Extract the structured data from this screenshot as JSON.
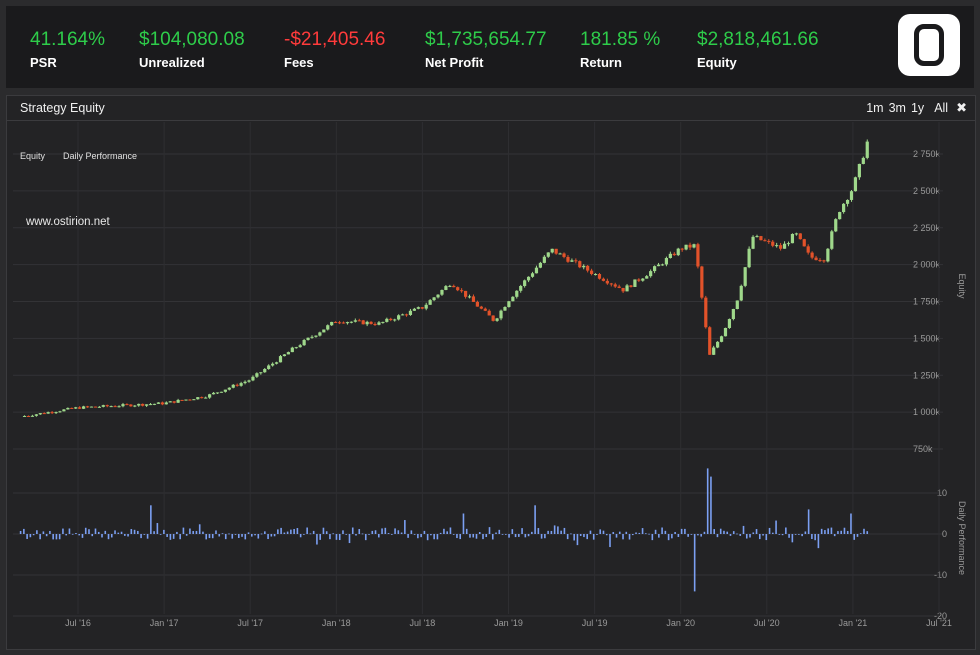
{
  "stats": [
    {
      "value": "41.164%",
      "label": "PSR",
      "tone": "pos"
    },
    {
      "value": "$104,080.08",
      "label": "Unrealized",
      "tone": "pos"
    },
    {
      "value": "-$21,405.46",
      "label": "Fees",
      "tone": "neg"
    },
    {
      "value": "$1,735,654.77",
      "label": "Net Profit",
      "tone": "pos"
    },
    {
      "value": "181.85 %",
      "label": "Return",
      "tone": "pos"
    },
    {
      "value": "$2,818,461.66",
      "label": "Equity",
      "tone": "pos"
    }
  ],
  "logo_icon": "logo-o-icon",
  "panel": {
    "title": "Strategy Equity",
    "ranges": [
      "1m",
      "3m",
      "1y"
    ],
    "range_all": "All",
    "close_icon": "close-icon"
  },
  "colors": {
    "up": "#9fd88b",
    "down": "#e2522a",
    "bar": "#7b9ff2",
    "positive": "#2ecc4a",
    "negative": "#ff3b3b"
  },
  "chart_data": {
    "type": "candlestick",
    "legend": [
      "Equity",
      "Daily Performance"
    ],
    "legend_placement": "top-left",
    "watermark": "www.ostirion.net",
    "x_ticks": [
      "Jul '16",
      "Jan '17",
      "Jul '17",
      "Jan '18",
      "Jul '18",
      "Jan '19",
      "Jul '19",
      "Jan '20",
      "Jul '20",
      "Jan '21",
      "Jul '21"
    ],
    "grid": true,
    "equity": {
      "ylabel": "Equity",
      "y_ticks": [
        "750k",
        "1 000k",
        "1 250k",
        "1 500k",
        "1 750k",
        "2 000k",
        "2 250k",
        "2 500k",
        "2 750k"
      ],
      "ylim": [
        750000,
        2900000
      ],
      "approx_points": [
        [
          "Mar '16",
          970000
        ],
        [
          "Jul '16",
          1030000
        ],
        [
          "Jan '17",
          1060000
        ],
        [
          "Apr '17",
          1110000
        ],
        [
          "Jul '17",
          1220000
        ],
        [
          "Oct '17",
          1430000
        ],
        [
          "Jan '18",
          1620000
        ],
        [
          "Apr '18",
          1600000
        ],
        [
          "Jul '18",
          1710000
        ],
        [
          "Sep '18",
          1880000
        ],
        [
          "Dec '18",
          1620000
        ],
        [
          "Jan '19",
          1760000
        ],
        [
          "Apr '19",
          2100000
        ],
        [
          "Jun '19",
          1990000
        ],
        [
          "Sep '19",
          1830000
        ],
        [
          "Nov '19",
          1960000
        ],
        [
          "Jan '20",
          2110000
        ],
        [
          "Feb '20",
          2130000
        ],
        [
          "Mar '20",
          1380000
        ],
        [
          "Apr '20",
          1550000
        ],
        [
          "May '20",
          1780000
        ],
        [
          "Jun '20",
          2190000
        ],
        [
          "Aug '20",
          2110000
        ],
        [
          "Sep '20",
          2210000
        ],
        [
          "Oct '20",
          2050000
        ],
        [
          "Nov '20",
          2040000
        ],
        [
          "Dec '20",
          2360000
        ],
        [
          "Jan '21",
          2520000
        ],
        [
          "Feb '21",
          2830000
        ]
      ]
    },
    "daily_performance": {
      "ylabel": "Daily Performance",
      "y_ticks": [
        "10",
        "0",
        "-10",
        "-20"
      ],
      "ylim": [
        -20,
        16
      ],
      "notable_values": [
        [
          "Feb '20",
          -14
        ],
        [
          "Mar '20",
          16
        ],
        [
          "Mar '20",
          14
        ],
        [
          "Mar '20",
          -8
        ],
        [
          "Dec '16",
          7
        ],
        [
          "Oct '18",
          5
        ],
        [
          "Mar '19",
          7
        ],
        [
          "Oct '20",
          6
        ],
        [
          "Jan '21",
          5
        ]
      ]
    }
  }
}
